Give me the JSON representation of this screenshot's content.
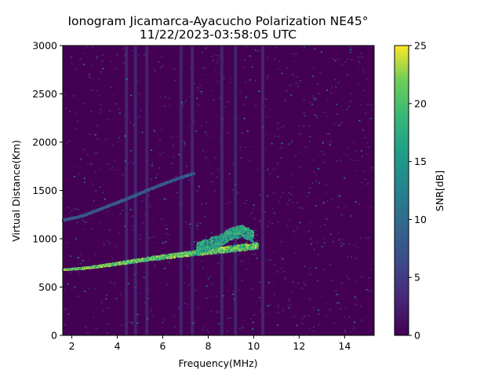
{
  "chart_data": {
    "type": "heatmap",
    "title": "Ionogram Jicamarca-Ayacucho Polarization NE45°",
    "subtitle": "11/22/2023-03:58:05 UTC",
    "xlabel": "Frequency(MHz)",
    "ylabel": "Virtual Distance(Km)",
    "xlim": [
      1.6,
      15.3
    ],
    "ylim": [
      0,
      3000
    ],
    "xticks": [
      2,
      4,
      6,
      8,
      10,
      12,
      14
    ],
    "yticks": [
      0,
      500,
      1000,
      1500,
      2000,
      2500,
      3000
    ],
    "colorbar": {
      "label": "SNR[dB]",
      "range": [
        0,
        25
      ],
      "ticks": [
        0,
        5,
        10,
        15,
        20,
        25
      ],
      "colormap": "viridis"
    },
    "traces": [
      {
        "description": "first-hop echo",
        "points": [
          [
            1.6,
            680
          ],
          [
            2.5,
            695
          ],
          [
            3.5,
            725
          ],
          [
            4.5,
            760
          ],
          [
            5.5,
            795
          ],
          [
            6.5,
            825
          ],
          [
            7.5,
            855
          ],
          [
            8.5,
            880
          ],
          [
            9.5,
            910
          ],
          [
            10.2,
            930
          ]
        ],
        "snr_db": 25
      },
      {
        "description": "spread echo",
        "points": [
          [
            7.5,
            900
          ],
          [
            8.5,
            980
          ],
          [
            9.0,
            1050
          ],
          [
            9.5,
            1080
          ],
          [
            10.0,
            1020
          ]
        ],
        "snr_db": 20
      },
      {
        "description": "second-hop echo",
        "points": [
          [
            1.6,
            1190
          ],
          [
            2.5,
            1240
          ],
          [
            3.5,
            1330
          ],
          [
            4.5,
            1420
          ],
          [
            5.5,
            1520
          ],
          [
            6.5,
            1610
          ],
          [
            7.4,
            1680
          ]
        ],
        "snr_db": 10
      }
    ],
    "bright_columns_mhz": [
      4.4,
      4.8,
      5.3,
      6.8,
      7.3,
      8.6,
      9.2,
      10.4
    ],
    "grid": false
  }
}
